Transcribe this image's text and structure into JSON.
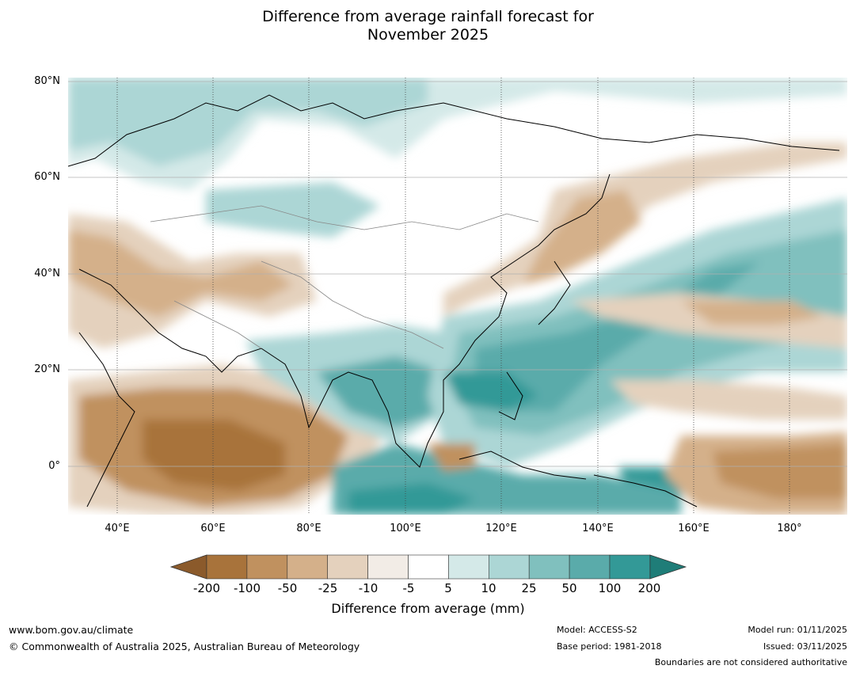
{
  "title_line1": "Difference from average rainfall forecast for",
  "title_line2": "November 2025",
  "map": {
    "lat_labels": [
      "80°N",
      "60°N",
      "40°N",
      "20°N",
      "0°"
    ],
    "lon_labels": [
      "40°E",
      "60°E",
      "80°E",
      "100°E",
      "120°E",
      "140°E",
      "160°E",
      "180°"
    ]
  },
  "colorbar": {
    "ticks": [
      "-200",
      "-100",
      "-50",
      "-25",
      "-10",
      "-5",
      "5",
      "10",
      "25",
      "50",
      "100",
      "200"
    ],
    "colors": [
      "#8b5a2b",
      "#a8733b",
      "#c0915f",
      "#d4b08a",
      "#e4d1bd",
      "#f2ece6",
      "#ffffff",
      "#d4e9e8",
      "#acd6d5",
      "#80c0be",
      "#5aabaa",
      "#339997",
      "#1f7d78"
    ],
    "label": "Difference from average (mm)"
  },
  "footer": {
    "website": "www.bom.gov.au/climate",
    "copyright": "© Commonwealth of Australia 2025, Australian Bureau of Meteorology",
    "model": "Model: ACCESS-S2",
    "base_period": "Base period: 1981-2018",
    "model_run": "Model run: 01/11/2025",
    "issued": "Issued: 03/11/2025",
    "disclaimer": "Boundaries are not considered authoritative"
  }
}
